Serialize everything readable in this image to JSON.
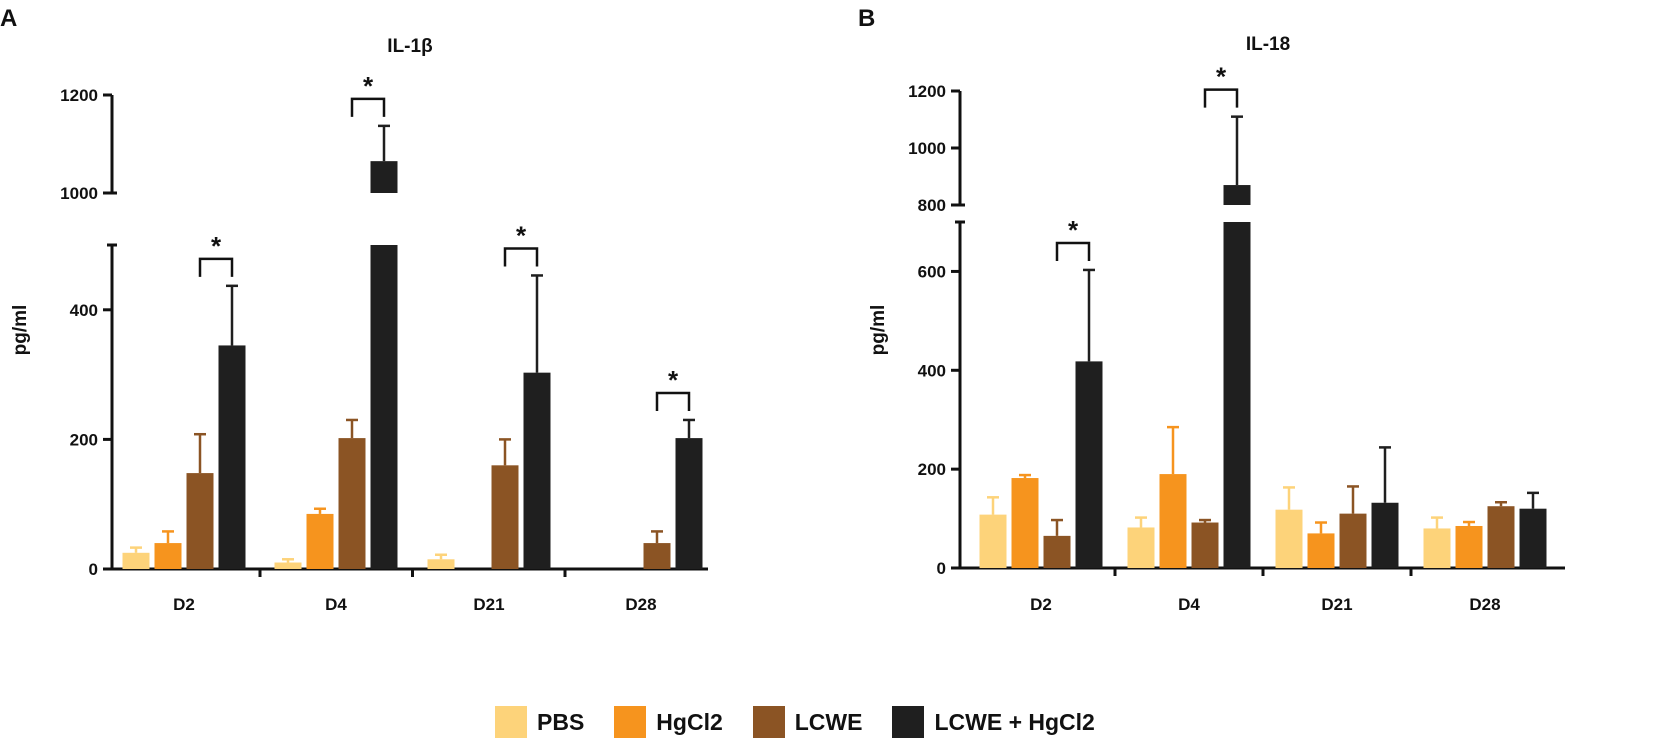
{
  "series_colors": [
    "#fdd37a",
    "#f6941e",
    "#8b5424",
    "#1f1f1f"
  ],
  "legend": {
    "items": [
      {
        "label": "PBS"
      },
      {
        "label": "HgCl2"
      },
      {
        "label": "LCWE"
      },
      {
        "label": "LCWE + HgCl2"
      }
    ]
  },
  "chart_data": [
    {
      "type": "bar",
      "panel": "A",
      "title": "IL-1β",
      "ylabel": "pg/ml",
      "xlabel": "",
      "categories": [
        "D2",
        "D4",
        "D21",
        "D28"
      ],
      "y_axis_broken": true,
      "yticks_lower": [
        0,
        200,
        400
      ],
      "yticks_upper": [
        1000,
        1200
      ],
      "series": [
        {
          "name": "PBS",
          "values": [
            25,
            10,
            15,
            null
          ],
          "errors": [
            8,
            5,
            7,
            null
          ]
        },
        {
          "name": "HgCl2",
          "values": [
            40,
            85,
            null,
            null
          ],
          "errors": [
            18,
            8,
            null,
            null
          ]
        },
        {
          "name": "LCWE",
          "values": [
            148,
            202,
            160,
            40
          ],
          "errors": [
            60,
            28,
            40,
            18
          ]
        },
        {
          "name": "LCWE + HgCl2",
          "values": [
            345,
            1065,
            303,
            202
          ],
          "errors": [
            92,
            72,
            150,
            28
          ]
        }
      ],
      "significance": [
        {
          "category": "D2",
          "label": "*"
        },
        {
          "category": "D4",
          "label": "*"
        },
        {
          "category": "D21",
          "label": "*"
        },
        {
          "category": "D28",
          "label": "*"
        }
      ]
    },
    {
      "type": "bar",
      "panel": "B",
      "title": "IL-18",
      "ylabel": "pg/ml",
      "xlabel": "",
      "categories": [
        "D2",
        "D4",
        "D21",
        "D28"
      ],
      "y_axis_broken": true,
      "yticks_lower": [
        0,
        200,
        400,
        600
      ],
      "yticks_upper": [
        800,
        1000,
        1200
      ],
      "series": [
        {
          "name": "PBS",
          "values": [
            108,
            82,
            118,
            80
          ],
          "errors": [
            35,
            20,
            45,
            22
          ]
        },
        {
          "name": "HgCl2",
          "values": [
            182,
            190,
            70,
            85
          ],
          "errors": [
            6,
            95,
            22,
            8
          ]
        },
        {
          "name": "LCWE",
          "values": [
            65,
            92,
            110,
            125
          ],
          "errors": [
            32,
            5,
            55,
            8
          ]
        },
        {
          "name": "LCWE + HgCl2",
          "values": [
            418,
            870,
            132,
            120
          ],
          "errors": [
            185,
            240,
            112,
            32
          ]
        }
      ],
      "significance": [
        {
          "category": "D2",
          "label": "*"
        },
        {
          "category": "D4",
          "label": "*"
        }
      ]
    }
  ]
}
